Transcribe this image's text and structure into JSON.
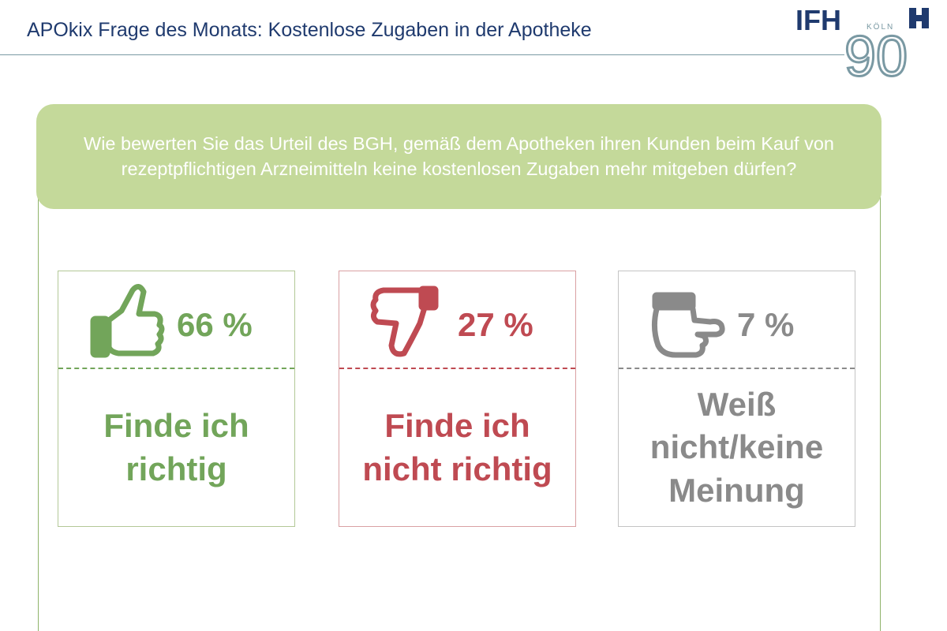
{
  "header": {
    "title": "APOkix Frage des Monats: Kostenlose Zugaben in der Apotheke",
    "logo_text": "IFH KÖLN 90"
  },
  "question": "Wie bewerten Sie das Urteil des BGH, gemäß dem Apotheken ihren Kunden beim Kauf von rezeptpflichtigen Arzneimitteln keine kostenlosen Zugaben mehr mitgeben dürfen?",
  "colors": {
    "positive": "#72a55a",
    "negative": "#bf4a52",
    "neutral": "#8a8a8a",
    "question_bg": "#c4d99a",
    "title": "#1f3a6e"
  },
  "chart_data": {
    "type": "bar",
    "categories": [
      "Finde ich richtig",
      "Finde ich nicht richtig",
      "Weiß nicht/keine Meinung"
    ],
    "values": [
      66,
      27,
      7
    ],
    "value_labels": [
      "66 %",
      "27 %",
      "7 %"
    ],
    "icons": [
      "thumbs-up-icon",
      "thumbs-down-icon",
      "thumb-sideways-icon"
    ],
    "title": "APOkix Frage des Monats: Kostenlose Zugaben in der Apotheke"
  }
}
